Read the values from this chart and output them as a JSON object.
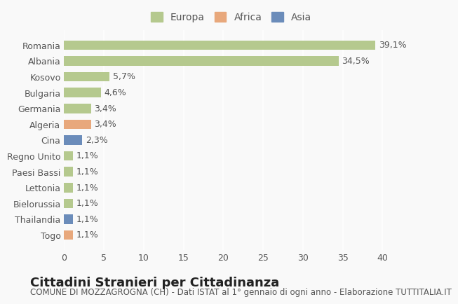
{
  "countries": [
    "Romania",
    "Albania",
    "Kosovo",
    "Bulgaria",
    "Germania",
    "Algeria",
    "Cina",
    "Regno Unito",
    "Paesi Bassi",
    "Lettonia",
    "Bielorussia",
    "Thailandia",
    "Togo"
  ],
  "values": [
    39.1,
    34.5,
    5.7,
    4.6,
    3.4,
    3.4,
    2.3,
    1.1,
    1.1,
    1.1,
    1.1,
    1.1,
    1.1
  ],
  "labels": [
    "39,1%",
    "34,5%",
    "5,7%",
    "4,6%",
    "3,4%",
    "3,4%",
    "2,3%",
    "1,1%",
    "1,1%",
    "1,1%",
    "1,1%",
    "1,1%",
    "1,1%"
  ],
  "continents": [
    "Europa",
    "Europa",
    "Europa",
    "Europa",
    "Europa",
    "Africa",
    "Asia",
    "Europa",
    "Europa",
    "Europa",
    "Europa",
    "Asia",
    "Africa"
  ],
  "colors": {
    "Europa": "#b5c98e",
    "Africa": "#e8a87c",
    "Asia": "#6b8cba"
  },
  "legend_colors": {
    "Europa": "#b5c98e",
    "Africa": "#e8a87c",
    "Asia": "#6b8cba"
  },
  "xlim": [
    0,
    42
  ],
  "xticks": [
    0,
    5,
    10,
    15,
    20,
    25,
    30,
    35,
    40
  ],
  "title": "Cittadini Stranieri per Cittadinanza",
  "subtitle": "COMUNE DI MOZZAGROGNA (CH) - Dati ISTAT al 1° gennaio di ogni anno - Elaborazione TUTTITALIA.IT",
  "bg_color": "#f9f9f9",
  "grid_color": "#ffffff",
  "bar_height": 0.6,
  "title_fontsize": 13,
  "subtitle_fontsize": 8.5,
  "label_fontsize": 9,
  "tick_fontsize": 9,
  "legend_fontsize": 10
}
